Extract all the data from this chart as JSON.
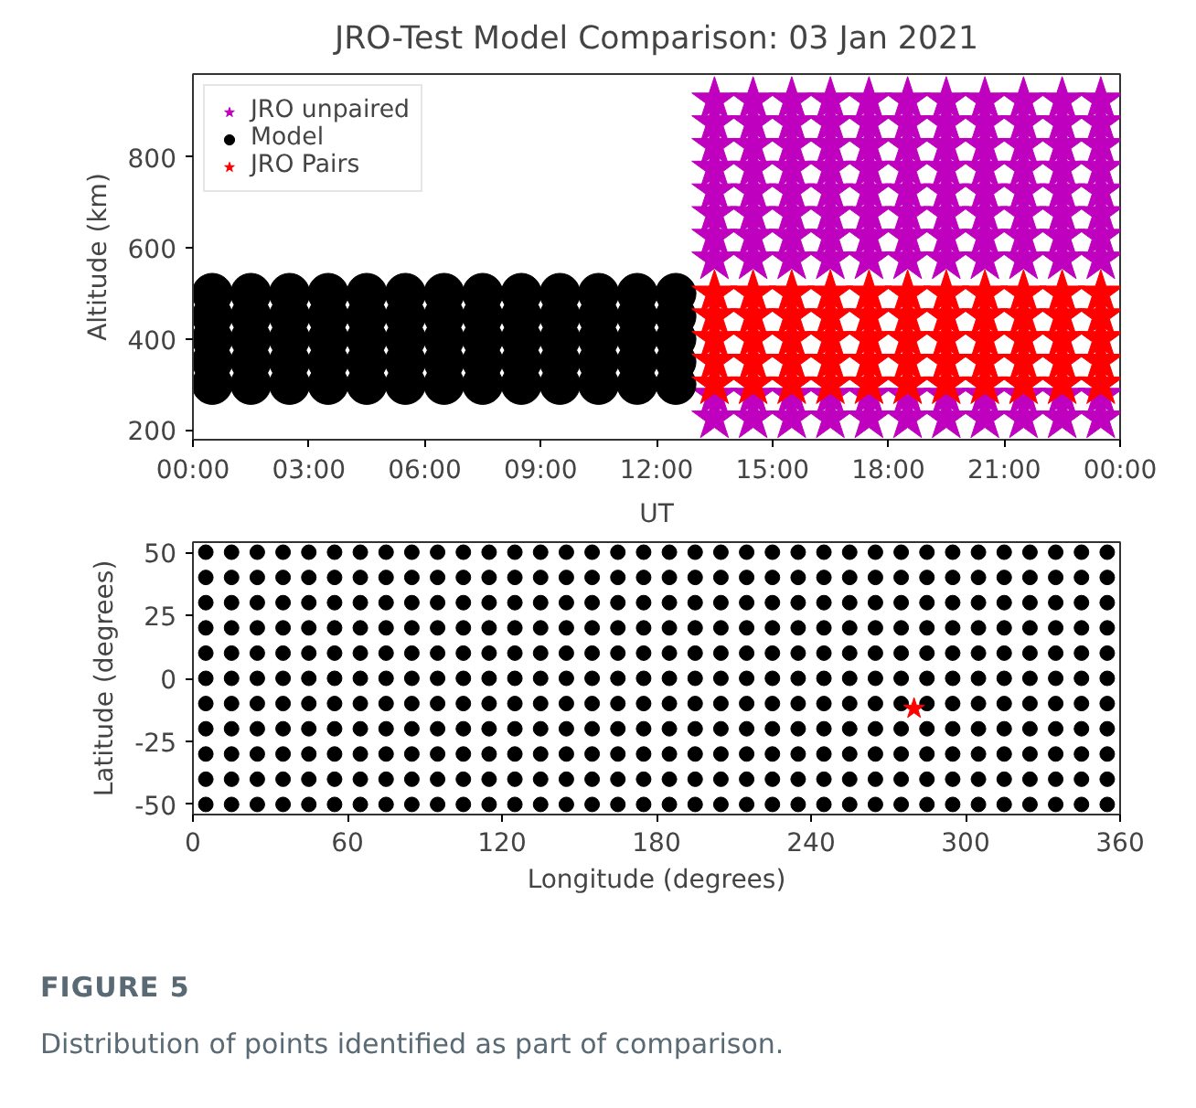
{
  "chart_data": [
    {
      "type": "scatter",
      "title": "JRO-Test Model Comparison: 03 Jan 2021",
      "xlabel": "UT",
      "ylabel": "Altitude (km)",
      "legend": "top left",
      "xlim": [
        0,
        24
      ],
      "xticks": [
        {
          "value": 0,
          "label": "00:00"
        },
        {
          "value": 3,
          "label": "03:00"
        },
        {
          "value": 6,
          "label": "06:00"
        },
        {
          "value": 9,
          "label": "09:00"
        },
        {
          "value": 12,
          "label": "12:00"
        },
        {
          "value": 15,
          "label": "15:00"
        },
        {
          "value": 18,
          "label": "18:00"
        },
        {
          "value": 21,
          "label": "21:00"
        },
        {
          "value": 24,
          "label": "00:00"
        }
      ],
      "ylim": [
        178,
        983
      ],
      "yticks": [
        200,
        400,
        600,
        800
      ],
      "series": [
        {
          "name": "JRO unpaired",
          "color": "#bf00bf",
          "marker": "star",
          "x": [
            13.5,
            13.5,
            14.5,
            14.5,
            15.5,
            15.5,
            16.5,
            16.5,
            17.5,
            17.5,
            18.5,
            18.5,
            19.5,
            19.5,
            20.5,
            20.5,
            21.5,
            21.5,
            22.5,
            22.5,
            23.5,
            23.5
          ],
          "values": [
            225,
            275,
            225,
            275,
            225,
            275,
            225,
            275,
            225,
            275,
            225,
            275,
            225,
            275,
            225,
            275,
            225,
            275,
            225,
            275,
            225,
            275
          ]
        },
        {
          "color": "#bf00bf",
          "marker": "star",
          "x": [
            13.5,
            14.5,
            15.5,
            16.5,
            17.5,
            18.5,
            19.5,
            20.5,
            21.5,
            22.5,
            23.5
          ],
          "values": [
            575,
            575,
            575,
            575,
            575,
            575,
            575,
            575,
            575,
            575,
            575
          ]
        },
        {
          "color": "#bf00bf",
          "marker": "star",
          "x": [
            13.5,
            14.5,
            15.5,
            16.5,
            17.5,
            18.5,
            19.5,
            20.5,
            21.5,
            22.5,
            23.5
          ],
          "values": [
            625,
            625,
            625,
            625,
            625,
            625,
            625,
            625,
            625,
            625,
            625
          ]
        },
        {
          "color": "#bf00bf",
          "marker": "star",
          "x": [
            13.5,
            14.5,
            15.5,
            16.5,
            17.5,
            18.5,
            19.5,
            20.5,
            21.5,
            22.5,
            23.5
          ],
          "values": [
            675,
            675,
            675,
            675,
            675,
            675,
            675,
            675,
            675,
            675,
            675
          ]
        },
        {
          "color": "#bf00bf",
          "marker": "star",
          "x": [
            13.5,
            14.5,
            15.5,
            16.5,
            17.5,
            18.5,
            19.5,
            20.5,
            21.5,
            22.5,
            23.5
          ],
          "values": [
            725,
            725,
            725,
            725,
            725,
            725,
            725,
            725,
            725,
            725,
            725
          ]
        },
        {
          "color": "#bf00bf",
          "marker": "star",
          "x": [
            13.5,
            14.5,
            15.5,
            16.5,
            17.5,
            18.5,
            19.5,
            20.5,
            21.5,
            22.5,
            23.5
          ],
          "values": [
            775,
            775,
            775,
            775,
            775,
            775,
            775,
            775,
            775,
            775,
            775
          ]
        },
        {
          "color": "#bf00bf",
          "marker": "star",
          "x": [
            13.5,
            14.5,
            15.5,
            16.5,
            17.5,
            18.5,
            19.5,
            20.5,
            21.5,
            22.5,
            23.5
          ],
          "values": [
            825,
            825,
            825,
            825,
            825,
            825,
            825,
            825,
            825,
            825,
            825
          ]
        },
        {
          "color": "#bf00bf",
          "marker": "star",
          "x": [
            13.5,
            14.5,
            15.5,
            16.5,
            17.5,
            18.5,
            19.5,
            20.5,
            21.5,
            22.5,
            23.5
          ],
          "values": [
            875,
            875,
            875,
            875,
            875,
            875,
            875,
            875,
            875,
            875,
            875
          ]
        },
        {
          "color": "#bf00bf",
          "marker": "star",
          "x": [
            13.5,
            14.5,
            15.5,
            16.5,
            17.5,
            18.5,
            19.5,
            20.5,
            21.5,
            22.5,
            23.5
          ],
          "values": [
            925,
            925,
            925,
            925,
            925,
            925,
            925,
            925,
            925,
            925,
            925
          ]
        },
        {
          "name": "Model",
          "color": "#000000",
          "marker": "circle",
          "x": [
            0.5,
            1.5,
            2.5,
            3.5,
            4.5,
            5.5,
            6.5,
            7.5,
            8.5,
            9.5,
            10.5,
            11.5,
            12.5
          ],
          "values": [
            300,
            300,
            300,
            300,
            300,
            300,
            300,
            300,
            300,
            300,
            300,
            300,
            300
          ]
        },
        {
          "color": "#000000",
          "marker": "circle",
          "x": [
            0.5,
            1.5,
            2.5,
            3.5,
            4.5,
            5.5,
            6.5,
            7.5,
            8.5,
            9.5,
            10.5,
            11.5,
            12.5
          ],
          "values": [
            350,
            350,
            350,
            350,
            350,
            350,
            350,
            350,
            350,
            350,
            350,
            350,
            350
          ]
        },
        {
          "color": "#000000",
          "marker": "circle",
          "x": [
            0.5,
            1.5,
            2.5,
            3.5,
            4.5,
            5.5,
            6.5,
            7.5,
            8.5,
            9.5,
            10.5,
            11.5,
            12.5
          ],
          "values": [
            400,
            400,
            400,
            400,
            400,
            400,
            400,
            400,
            400,
            400,
            400,
            400,
            400
          ]
        },
        {
          "color": "#000000",
          "marker": "circle",
          "x": [
            0.5,
            1.5,
            2.5,
            3.5,
            4.5,
            5.5,
            6.5,
            7.5,
            8.5,
            9.5,
            10.5,
            11.5,
            12.5
          ],
          "values": [
            450,
            450,
            450,
            450,
            450,
            450,
            450,
            450,
            450,
            450,
            450,
            450,
            450
          ]
        },
        {
          "color": "#000000",
          "marker": "circle",
          "x": [
            0.5,
            1.5,
            2.5,
            3.5,
            4.5,
            5.5,
            6.5,
            7.5,
            8.5,
            9.5,
            10.5,
            11.5,
            12.5
          ],
          "values": [
            500,
            500,
            500,
            500,
            500,
            500,
            500,
            500,
            500,
            500,
            500,
            500,
            500
          ]
        },
        {
          "name": "JRO Pairs",
          "color": "#ff0000",
          "marker": "star",
          "x": [
            13.5,
            14.5,
            15.5,
            16.5,
            17.5,
            18.5,
            19.5,
            20.5,
            21.5,
            22.5,
            23.5
          ],
          "values": [
            300,
            300,
            300,
            300,
            300,
            300,
            300,
            300,
            300,
            300,
            300
          ]
        },
        {
          "color": "#ff0000",
          "marker": "star",
          "x": [
            13.5,
            14.5,
            15.5,
            16.5,
            17.5,
            18.5,
            19.5,
            20.5,
            21.5,
            22.5,
            23.5
          ],
          "values": [
            350,
            350,
            350,
            350,
            350,
            350,
            350,
            350,
            350,
            350,
            350
          ]
        },
        {
          "color": "#ff0000",
          "marker": "star",
          "x": [
            13.5,
            14.5,
            15.5,
            16.5,
            17.5,
            18.5,
            19.5,
            20.5,
            21.5,
            22.5,
            23.5
          ],
          "values": [
            400,
            400,
            400,
            400,
            400,
            400,
            400,
            400,
            400,
            400,
            400
          ]
        },
        {
          "color": "#ff0000",
          "marker": "star",
          "x": [
            13.5,
            14.5,
            15.5,
            16.5,
            17.5,
            18.5,
            19.5,
            20.5,
            21.5,
            22.5,
            23.5
          ],
          "values": [
            450,
            450,
            450,
            450,
            450,
            450,
            450,
            450,
            450,
            450,
            450
          ]
        },
        {
          "color": "#ff0000",
          "marker": "star",
          "x": [
            13.5,
            14.5,
            15.5,
            16.5,
            17.5,
            18.5,
            19.5,
            20.5,
            21.5,
            22.5,
            23.5
          ],
          "values": [
            500,
            500,
            500,
            500,
            500,
            500,
            500,
            500,
            500,
            500,
            500
          ]
        }
      ]
    },
    {
      "type": "scatter",
      "xlabel": "Longitude (degrees)",
      "ylabel": "Latitude (degrees)",
      "annotations": [
        "FIGURE 5",
        "Distribution of points identified as part of comparison."
      ],
      "xlim": [
        0,
        360
      ],
      "xticks": [
        0,
        60,
        120,
        180,
        240,
        300,
        360
      ],
      "ylim": [
        -54,
        54
      ],
      "yticks": [
        -50,
        -25,
        0,
        25,
        50
      ],
      "x": [
        5,
        15,
        25,
        35,
        45,
        55,
        65,
        75,
        85,
        95,
        105,
        115,
        125,
        135,
        145,
        155,
        165,
        175,
        185,
        195,
        205,
        215,
        225,
        235,
        245,
        255,
        265,
        275,
        285,
        295,
        305,
        315,
        325,
        335,
        345,
        355
      ],
      "series": [
        {
          "color": "#000000",
          "marker": "circle",
          "values": [
            -50,
            -50,
            -50,
            -50,
            -50,
            -50,
            -50,
            -50,
            -50,
            -50,
            -50,
            -50,
            -50,
            -50,
            -50,
            -50,
            -50,
            -50,
            -50,
            -50,
            -50,
            -50,
            -50,
            -50,
            -50,
            -50,
            -50,
            -50,
            -50,
            -50,
            -50,
            -50,
            -50,
            -50,
            -50,
            -50
          ]
        },
        {
          "color": "#000000",
          "marker": "circle",
          "values": [
            -40,
            -40,
            -40,
            -40,
            -40,
            -40,
            -40,
            -40,
            -40,
            -40,
            -40,
            -40,
            -40,
            -40,
            -40,
            -40,
            -40,
            -40,
            -40,
            -40,
            -40,
            -40,
            -40,
            -40,
            -40,
            -40,
            -40,
            -40,
            -40,
            -40,
            -40,
            -40,
            -40,
            -40,
            -40,
            -40
          ]
        },
        {
          "color": "#000000",
          "marker": "circle",
          "values": [
            -30,
            -30,
            -30,
            -30,
            -30,
            -30,
            -30,
            -30,
            -30,
            -30,
            -30,
            -30,
            -30,
            -30,
            -30,
            -30,
            -30,
            -30,
            -30,
            -30,
            -30,
            -30,
            -30,
            -30,
            -30,
            -30,
            -30,
            -30,
            -30,
            -30,
            -30,
            -30,
            -30,
            -30,
            -30,
            -30
          ]
        },
        {
          "color": "#000000",
          "marker": "circle",
          "values": [
            -20,
            -20,
            -20,
            -20,
            -20,
            -20,
            -20,
            -20,
            -20,
            -20,
            -20,
            -20,
            -20,
            -20,
            -20,
            -20,
            -20,
            -20,
            -20,
            -20,
            -20,
            -20,
            -20,
            -20,
            -20,
            -20,
            -20,
            -20,
            -20,
            -20,
            -20,
            -20,
            -20,
            -20,
            -20,
            -20
          ]
        },
        {
          "color": "#000000",
          "marker": "circle",
          "values": [
            -10,
            -10,
            -10,
            -10,
            -10,
            -10,
            -10,
            -10,
            -10,
            -10,
            -10,
            -10,
            -10,
            -10,
            -10,
            -10,
            -10,
            -10,
            -10,
            -10,
            -10,
            -10,
            -10,
            -10,
            -10,
            -10,
            -10,
            -10,
            -10,
            -10,
            -10,
            -10,
            -10,
            -10,
            -10,
            -10
          ]
        },
        {
          "color": "#000000",
          "marker": "circle",
          "values": [
            0,
            0,
            0,
            0,
            0,
            0,
            0,
            0,
            0,
            0,
            0,
            0,
            0,
            0,
            0,
            0,
            0,
            0,
            0,
            0,
            0,
            0,
            0,
            0,
            0,
            0,
            0,
            0,
            0,
            0,
            0,
            0,
            0,
            0,
            0,
            0
          ]
        },
        {
          "color": "#000000",
          "marker": "circle",
          "values": [
            10,
            10,
            10,
            10,
            10,
            10,
            10,
            10,
            10,
            10,
            10,
            10,
            10,
            10,
            10,
            10,
            10,
            10,
            10,
            10,
            10,
            10,
            10,
            10,
            10,
            10,
            10,
            10,
            10,
            10,
            10,
            10,
            10,
            10,
            10,
            10
          ]
        },
        {
          "color": "#000000",
          "marker": "circle",
          "values": [
            20,
            20,
            20,
            20,
            20,
            20,
            20,
            20,
            20,
            20,
            20,
            20,
            20,
            20,
            20,
            20,
            20,
            20,
            20,
            20,
            20,
            20,
            20,
            20,
            20,
            20,
            20,
            20,
            20,
            20,
            20,
            20,
            20,
            20,
            20,
            20
          ]
        },
        {
          "color": "#000000",
          "marker": "circle",
          "values": [
            30,
            30,
            30,
            30,
            30,
            30,
            30,
            30,
            30,
            30,
            30,
            30,
            30,
            30,
            30,
            30,
            30,
            30,
            30,
            30,
            30,
            30,
            30,
            30,
            30,
            30,
            30,
            30,
            30,
            30,
            30,
            30,
            30,
            30,
            30,
            30
          ]
        },
        {
          "color": "#000000",
          "marker": "circle",
          "values": [
            40,
            40,
            40,
            40,
            40,
            40,
            40,
            40,
            40,
            40,
            40,
            40,
            40,
            40,
            40,
            40,
            40,
            40,
            40,
            40,
            40,
            40,
            40,
            40,
            40,
            40,
            40,
            40,
            40,
            40,
            40,
            40,
            40,
            40,
            40,
            40
          ]
        },
        {
          "color": "#000000",
          "marker": "circle",
          "values": [
            50,
            50,
            50,
            50,
            50,
            50,
            50,
            50,
            50,
            50,
            50,
            50,
            50,
            50,
            50,
            50,
            50,
            50,
            50,
            50,
            50,
            50,
            50,
            50,
            50,
            50,
            50,
            50,
            50,
            50,
            50,
            50,
            50,
            50,
            50,
            50
          ]
        },
        {
          "color": "#ff0000",
          "marker": "star",
          "x": [
            280
          ],
          "values": [
            -12
          ]
        }
      ]
    }
  ]
}
